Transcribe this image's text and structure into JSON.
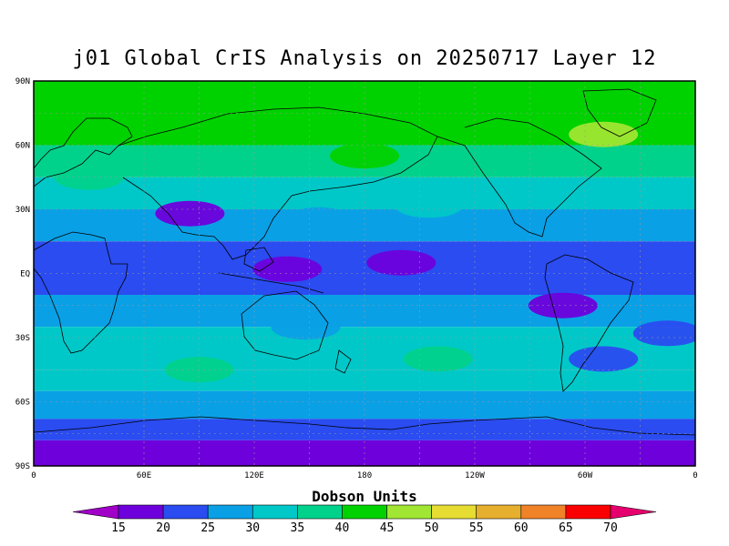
{
  "title": "j01 Global CrIS Analysis on 20250717 Layer 12",
  "colorbar_title": "Dobson Units",
  "lat_labels": [
    "90N",
    "60N",
    "30N",
    "EQ",
    "30S",
    "60S",
    "90S"
  ],
  "lon_labels": [
    "0",
    "60E",
    "120E",
    "180",
    "120W",
    "60W",
    "0"
  ],
  "levels": [
    15,
    20,
    25,
    30,
    35,
    40,
    45,
    50,
    55,
    60,
    65,
    70
  ],
  "colors": [
    "#a000c8",
    "#6e00dc",
    "#2a4cf0",
    "#0aa0e6",
    "#00c8c8",
    "#00d28c",
    "#00d200",
    "#a0e632",
    "#e6dc32",
    "#e6af2d",
    "#f08228",
    "#fa0000",
    "#e6006e"
  ],
  "chart_data": {
    "type": "heatmap",
    "title": "j01 Global CrIS Analysis on 20250717 Layer 12",
    "colorbar_label": "Dobson Units",
    "xlim": [
      0,
      360
    ],
    "ylim": [
      -90,
      90
    ],
    "zonal_bands": [
      {
        "lat_range": [
          80,
          90
        ],
        "value": 42
      },
      {
        "lat_range": [
          60,
          80
        ],
        "value": 40
      },
      {
        "lat_range": [
          45,
          60
        ],
        "value": 37
      },
      {
        "lat_range": [
          30,
          45
        ],
        "value": 31
      },
      {
        "lat_range": [
          15,
          30
        ],
        "value": 26
      },
      {
        "lat_range": [
          -10,
          15
        ],
        "value": 22
      },
      {
        "lat_range": [
          -25,
          -10
        ],
        "value": 27
      },
      {
        "lat_range": [
          -45,
          -25
        ],
        "value": 31
      },
      {
        "lat_range": [
          -55,
          -45
        ],
        "value": 33
      },
      {
        "lat_range": [
          -68,
          -55
        ],
        "value": 27
      },
      {
        "lat_range": [
          -78,
          -68
        ],
        "value": 22
      },
      {
        "lat_range": [
          -90,
          -78
        ],
        "value": 17
      }
    ],
    "features": [
      {
        "lon": 85,
        "lat": 28,
        "value": 17
      },
      {
        "lon": 138,
        "lat": 2,
        "value": 18
      },
      {
        "lon": 200,
        "lat": 5,
        "value": 19
      },
      {
        "lon": 288,
        "lat": -15,
        "value": 18
      },
      {
        "lon": 148,
        "lat": -25,
        "value": 27
      },
      {
        "lon": 345,
        "lat": -28,
        "value": 23
      },
      {
        "lon": 30,
        "lat": 45,
        "value": 38
      },
      {
        "lon": 180,
        "lat": 55,
        "value": 42
      },
      {
        "lon": 310,
        "lat": 65,
        "value": 48
      },
      {
        "lon": 90,
        "lat": -45,
        "value": 38
      },
      {
        "lon": 220,
        "lat": -40,
        "value": 37
      },
      {
        "lon": 310,
        "lat": -40,
        "value": 23
      },
      {
        "lon": 155,
        "lat": 25,
        "value": 29
      },
      {
        "lon": 215,
        "lat": 32,
        "value": 32
      }
    ]
  }
}
